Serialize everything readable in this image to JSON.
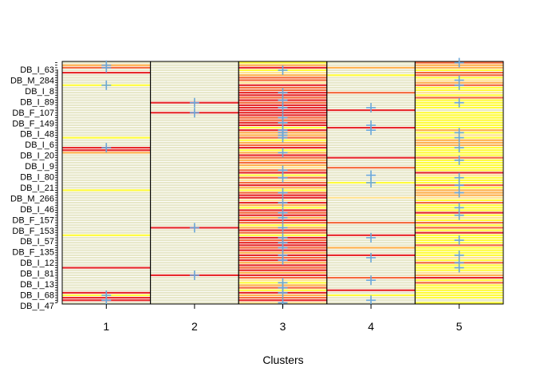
{
  "chart_data": {
    "type": "heatmap",
    "xlabel": "Clusters",
    "ylabel": "",
    "x_ticks": [
      "1",
      "2",
      "3",
      "4",
      "5"
    ],
    "y_tick_labels": [
      "DB_I_63",
      "DB_M_284",
      "DB_I_8",
      "DB_I_89",
      "DB_F_107",
      "DB_F_149",
      "DB_I_48",
      "DB_I_6",
      "DB_I_20",
      "DB_I_9",
      "DB_I_80",
      "DB_I_21",
      "DB_M_266",
      "DB_I_46",
      "DB_F_157",
      "DB_F_153",
      "DB_I_57",
      "DB_F_135",
      "DB_I_12",
      "DB_I_81",
      "DB_I_13",
      "DB_I_68",
      "DB_I_47"
    ],
    "n_rows": 97,
    "palette": {
      "0": "#e7e7c8",
      "1": "#fffb3a",
      "2": "#ffe28f",
      "3": "#fdb04b",
      "4": "#f46a3a",
      "5": "#e62a2a"
    },
    "marker_color": "#6aa7d9",
    "grid": "full",
    "legend": "none",
    "columns": [
      {
        "cluster": "1",
        "background": 0,
        "bands": [
          [
            1,
            1,
            3
          ],
          [
            2,
            2,
            4
          ],
          [
            4,
            4,
            5
          ],
          [
            9,
            9,
            1
          ],
          [
            30,
            30,
            1
          ],
          [
            34,
            35,
            5
          ],
          [
            36,
            36,
            3
          ],
          [
            51,
            51,
            1
          ],
          [
            69,
            69,
            1
          ],
          [
            82,
            82,
            5
          ],
          [
            92,
            92,
            5
          ],
          [
            93,
            93,
            1
          ],
          [
            94,
            94,
            5
          ],
          [
            95,
            95,
            5
          ]
        ],
        "markers": [
          1,
          2,
          9,
          34,
          93,
          95
        ]
      },
      {
        "cluster": "2",
        "background": 0,
        "bands": [
          [
            16,
            16,
            5
          ],
          [
            20,
            20,
            5
          ],
          [
            66,
            66,
            5
          ],
          [
            85,
            85,
            5
          ]
        ],
        "markers": [
          16,
          20,
          66,
          85
        ]
      },
      {
        "cluster": "3",
        "background": 2,
        "bands": [
          [
            0,
            0,
            1
          ],
          [
            1,
            1,
            3
          ],
          [
            2,
            2,
            5
          ],
          [
            3,
            3,
            1
          ],
          [
            4,
            4,
            2
          ],
          [
            5,
            5,
            3
          ],
          [
            6,
            7,
            4
          ],
          [
            9,
            9,
            5
          ],
          [
            10,
            11,
            4
          ],
          [
            12,
            13,
            5
          ],
          [
            14,
            14,
            4
          ],
          [
            15,
            15,
            5
          ],
          [
            16,
            16,
            4
          ],
          [
            17,
            21,
            5
          ],
          [
            22,
            23,
            4
          ],
          [
            24,
            25,
            5
          ],
          [
            26,
            26,
            1
          ],
          [
            27,
            27,
            5
          ],
          [
            28,
            29,
            3
          ],
          [
            30,
            30,
            4
          ],
          [
            31,
            31,
            1
          ],
          [
            32,
            32,
            3
          ],
          [
            33,
            33,
            4
          ],
          [
            34,
            34,
            5
          ],
          [
            35,
            35,
            1
          ],
          [
            36,
            36,
            3
          ],
          [
            37,
            37,
            5
          ],
          [
            38,
            38,
            4
          ],
          [
            39,
            39,
            3
          ],
          [
            40,
            40,
            4
          ],
          [
            41,
            41,
            3
          ],
          [
            42,
            42,
            2
          ],
          [
            43,
            43,
            4
          ],
          [
            44,
            44,
            5
          ],
          [
            45,
            45,
            1
          ],
          [
            46,
            46,
            4
          ],
          [
            47,
            47,
            2
          ],
          [
            48,
            48,
            4
          ],
          [
            49,
            49,
            5
          ],
          [
            50,
            50,
            3
          ],
          [
            51,
            51,
            1
          ],
          [
            52,
            52,
            4
          ],
          [
            53,
            54,
            5
          ],
          [
            55,
            55,
            2
          ],
          [
            56,
            56,
            5
          ],
          [
            57,
            57,
            3
          ],
          [
            58,
            58,
            1
          ],
          [
            59,
            59,
            5
          ],
          [
            60,
            60,
            4
          ],
          [
            61,
            61,
            5
          ],
          [
            62,
            62,
            3
          ],
          [
            63,
            63,
            5
          ],
          [
            64,
            64,
            4
          ],
          [
            65,
            65,
            1
          ],
          [
            66,
            66,
            3
          ],
          [
            67,
            67,
            5
          ],
          [
            68,
            68,
            4
          ],
          [
            69,
            69,
            1
          ],
          [
            70,
            70,
            5
          ],
          [
            71,
            71,
            4
          ],
          [
            72,
            73,
            5
          ],
          [
            74,
            74,
            4
          ],
          [
            75,
            75,
            5
          ],
          [
            76,
            76,
            3
          ],
          [
            77,
            77,
            5
          ],
          [
            78,
            78,
            4
          ],
          [
            79,
            79,
            5
          ],
          [
            80,
            80,
            3
          ],
          [
            81,
            81,
            5
          ],
          [
            82,
            82,
            4
          ],
          [
            83,
            83,
            5
          ],
          [
            84,
            84,
            3
          ],
          [
            85,
            85,
            5
          ],
          [
            86,
            86,
            4
          ],
          [
            87,
            87,
            2
          ],
          [
            88,
            88,
            1
          ],
          [
            89,
            89,
            3
          ],
          [
            90,
            90,
            4
          ],
          [
            91,
            91,
            1
          ],
          [
            92,
            92,
            5
          ],
          [
            93,
            93,
            3
          ],
          [
            94,
            94,
            4
          ],
          [
            95,
            95,
            5
          ],
          [
            96,
            96,
            2
          ]
        ],
        "markers": [
          3,
          12,
          15,
          18,
          22,
          24,
          27,
          28,
          29,
          30,
          36,
          43,
          46,
          52,
          56,
          60,
          62,
          66,
          70,
          72,
          74,
          77,
          79,
          88,
          90,
          92,
          96
        ]
      },
      {
        "cluster": "4",
        "background": 0,
        "bands": [
          [
            2,
            2,
            3
          ],
          [
            5,
            5,
            1
          ],
          [
            12,
            12,
            4
          ],
          [
            19,
            19,
            5
          ],
          [
            26,
            26,
            5
          ],
          [
            38,
            38,
            5
          ],
          [
            42,
            42,
            4
          ],
          [
            48,
            48,
            1
          ],
          [
            54,
            54,
            2
          ],
          [
            64,
            64,
            4
          ],
          [
            69,
            69,
            5
          ],
          [
            74,
            74,
            3
          ],
          [
            77,
            77,
            5
          ],
          [
            86,
            86,
            4
          ],
          [
            91,
            91,
            5
          ],
          [
            93,
            93,
            1
          ]
        ],
        "markers": [
          18,
          25,
          27,
          45,
          48,
          70,
          78,
          87,
          95
        ]
      },
      {
        "cluster": "5",
        "background": 1,
        "bands": [
          [
            0,
            0,
            4
          ],
          [
            1,
            2,
            3
          ],
          [
            4,
            5,
            4
          ],
          [
            6,
            6,
            1
          ],
          [
            7,
            7,
            2
          ],
          [
            8,
            8,
            3
          ],
          [
            9,
            9,
            4
          ],
          [
            10,
            10,
            1
          ],
          [
            12,
            12,
            2
          ],
          [
            14,
            14,
            4
          ],
          [
            17,
            17,
            1
          ],
          [
            19,
            19,
            0
          ],
          [
            22,
            22,
            1
          ],
          [
            27,
            27,
            3
          ],
          [
            29,
            29,
            2
          ],
          [
            31,
            33,
            3
          ],
          [
            38,
            38,
            4
          ],
          [
            41,
            41,
            1
          ],
          [
            44,
            44,
            5
          ],
          [
            45,
            45,
            2
          ],
          [
            47,
            47,
            1
          ],
          [
            49,
            49,
            4
          ],
          [
            51,
            53,
            3
          ],
          [
            54,
            54,
            2
          ],
          [
            56,
            56,
            4
          ],
          [
            58,
            58,
            1
          ],
          [
            60,
            60,
            5
          ],
          [
            62,
            62,
            2
          ],
          [
            64,
            64,
            4
          ],
          [
            66,
            66,
            4
          ],
          [
            68,
            68,
            5
          ],
          [
            71,
            71,
            1
          ],
          [
            73,
            73,
            4
          ],
          [
            75,
            75,
            1
          ],
          [
            78,
            78,
            2
          ],
          [
            80,
            80,
            4
          ],
          [
            82,
            82,
            1
          ],
          [
            84,
            84,
            2
          ],
          [
            85,
            85,
            3
          ],
          [
            86,
            86,
            5
          ],
          [
            88,
            88,
            4
          ],
          [
            91,
            91,
            1
          ],
          [
            95,
            95,
            0
          ]
        ],
        "markers": [
          0,
          7,
          9,
          16,
          28,
          30,
          34,
          39,
          46,
          49,
          52,
          58,
          61,
          71,
          77,
          80,
          82
        ]
      }
    ]
  }
}
